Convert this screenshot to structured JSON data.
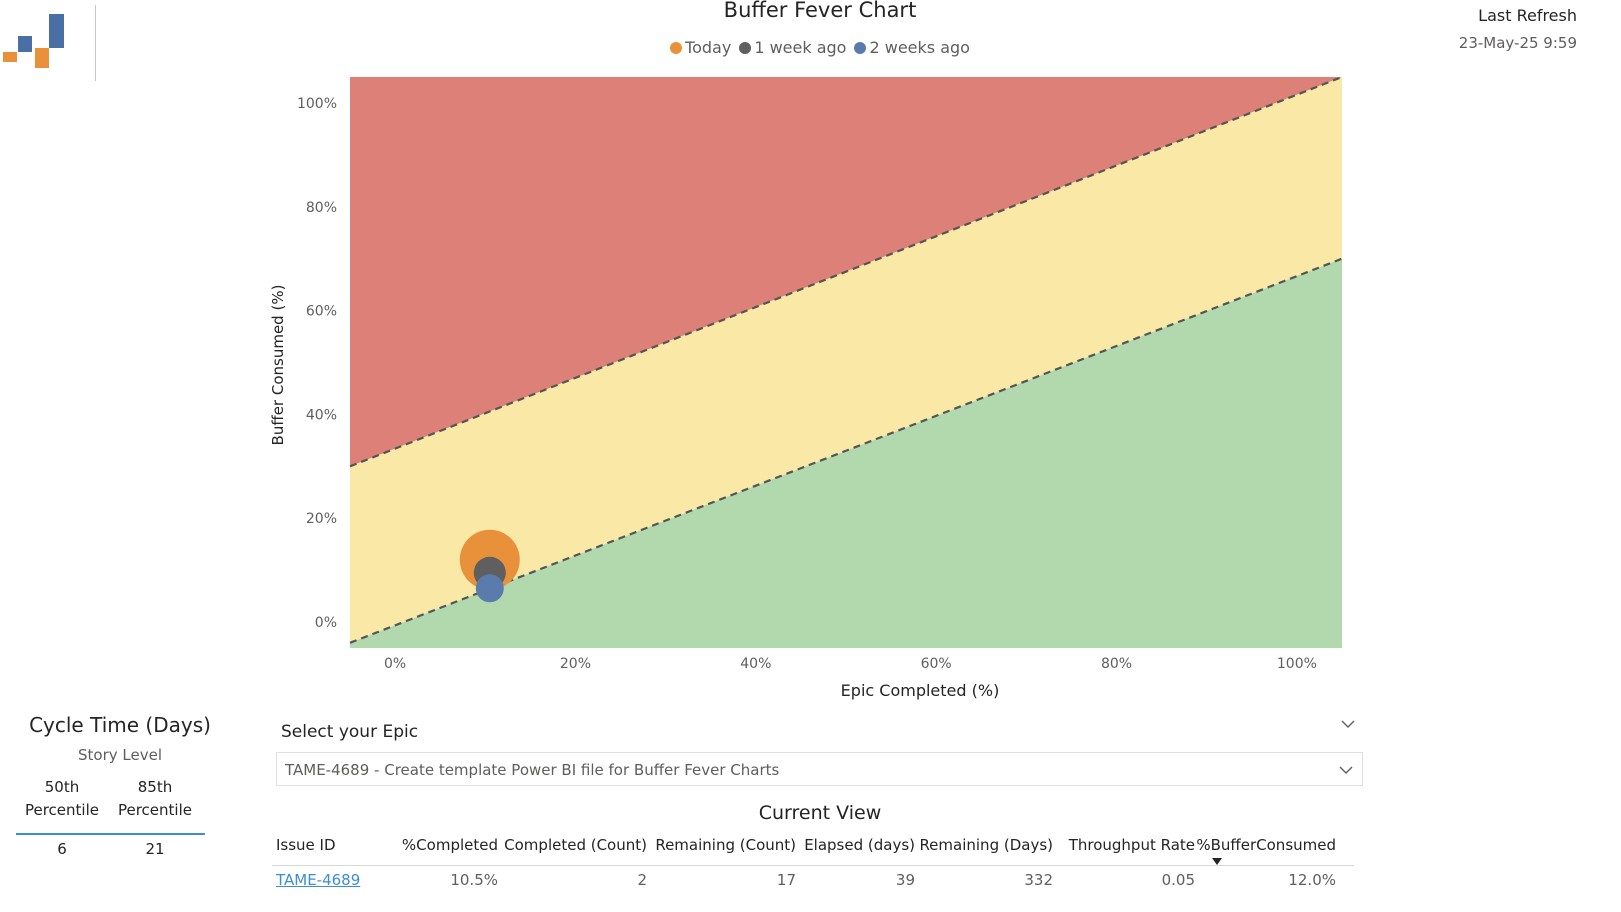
{
  "logo": {
    "colors": [
      "#e8913a",
      "#4a6fa5"
    ]
  },
  "refresh": {
    "label": "Last Refresh",
    "value": "23-May-25 9:59"
  },
  "chart_data": {
    "type": "scatter",
    "title": "Buffer Fever Chart",
    "xlabel": "Epic Completed (%)",
    "ylabel": "Buffer Consumed (%)",
    "xlim": [
      -5,
      105
    ],
    "ylim": [
      -5,
      105
    ],
    "xticks": [
      0,
      20,
      40,
      60,
      80,
      100
    ],
    "yticks": [
      0,
      20,
      40,
      60,
      80,
      100
    ],
    "xtick_labels": [
      "0%",
      "20%",
      "40%",
      "60%",
      "80%",
      "100%"
    ],
    "ytick_labels": [
      "0%",
      "20%",
      "40%",
      "60%",
      "80%",
      "100%"
    ],
    "grid": false,
    "legend_position": "top-center",
    "zones": [
      {
        "name": "red",
        "color": "#dc8078"
      },
      {
        "name": "yellow",
        "color": "#f9e8a6"
      },
      {
        "name": "green",
        "color": "#b2d9ae"
      }
    ],
    "boundaries": [
      {
        "from": [
          -5,
          30
        ],
        "to": [
          105,
          105
        ]
      },
      {
        "from": [
          -5,
          -4
        ],
        "to": [
          105,
          70
        ]
      }
    ],
    "series": [
      {
        "name": "Today",
        "color": "#e8913a",
        "points": [
          {
            "x": 10.5,
            "y": 12.0,
            "size": 3
          }
        ]
      },
      {
        "name": "1 week ago",
        "color": "#5f5f5f",
        "points": [
          {
            "x": 10.5,
            "y": 9.5,
            "size": 1.6
          }
        ]
      },
      {
        "name": "2 weeks ago",
        "color": "#5b7bad",
        "points": [
          {
            "x": 10.5,
            "y": 6.5,
            "size": 1.4
          }
        ]
      }
    ]
  },
  "cycle_time": {
    "title": "Cycle Time (Days)",
    "subtitle": "Story Level",
    "col1_line1": "50th",
    "col1_line2": "Percentile",
    "col2_line1": "85th",
    "col2_line2": "Percentile",
    "val1": "6",
    "val2": "21"
  },
  "slicer": {
    "title": "Select your Epic",
    "value": "TAME-4689 - Create template Power BI file for Buffer Fever Charts"
  },
  "table": {
    "title": "Current View",
    "headers": [
      "Issue ID",
      "%Completed",
      "Completed (Count)",
      "Remaining (Count)",
      "Elapsed (days)",
      "Remaining (Days)",
      "Throughput Rate",
      "%BufferConsumed"
    ],
    "row": [
      "TAME-4689",
      "10.5%",
      "2",
      "17",
      "39",
      "332",
      "0.05",
      "12.0%"
    ]
  }
}
